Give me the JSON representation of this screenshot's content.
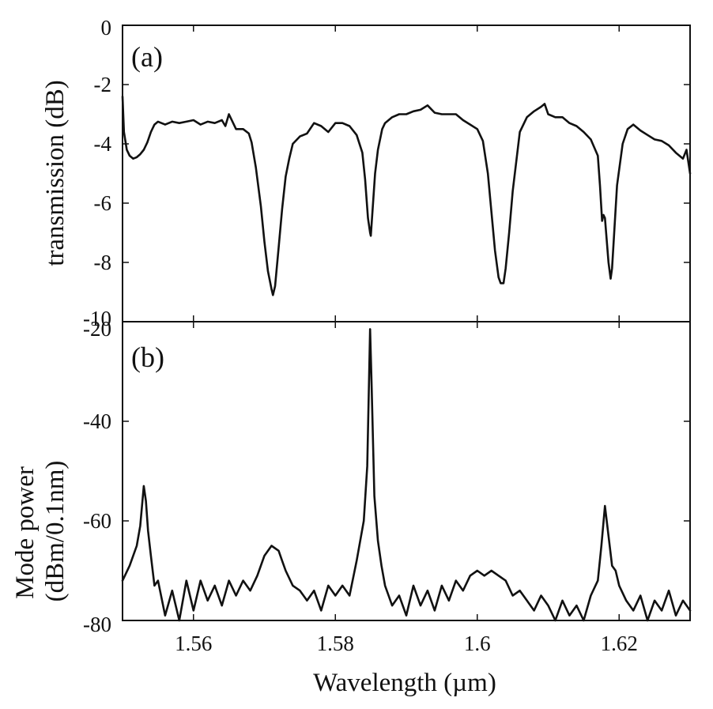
{
  "chart_data": [
    {
      "panel": "(a)",
      "type": "line",
      "ylabel": "transmission (dB)",
      "xlim": [
        1.55,
        1.63
      ],
      "ylim": [
        -10,
        0
      ],
      "yticks": [
        "0",
        "-2",
        "-4",
        "-6",
        "-8",
        "-10"
      ],
      "series": [
        {
          "x": [
            1.55,
            1.5502,
            1.5506,
            1.551,
            1.5515,
            1.552,
            1.5525,
            1.553,
            1.5535,
            1.554,
            1.5545,
            1.555,
            1.556,
            1.557,
            1.558,
            1.559,
            1.56,
            1.561,
            1.562,
            1.563,
            1.564,
            1.5645,
            1.565,
            1.566,
            1.567,
            1.5678,
            1.5682,
            1.5688,
            1.5695,
            1.57,
            1.5705,
            1.571,
            1.5712,
            1.5715,
            1.572,
            1.5725,
            1.573,
            1.5735,
            1.574,
            1.575,
            1.576,
            1.577,
            1.578,
            1.579,
            1.58,
            1.581,
            1.582,
            1.583,
            1.5838,
            1.5842,
            1.5846,
            1.5849,
            1.585,
            1.5852,
            1.5856,
            1.586,
            1.5866,
            1.587,
            1.588,
            1.589,
            1.59,
            1.591,
            1.592,
            1.593,
            1.594,
            1.595,
            1.596,
            1.597,
            1.598,
            1.599,
            1.6,
            1.6008,
            1.6015,
            1.602,
            1.6025,
            1.603,
            1.6033,
            1.6037,
            1.604,
            1.6045,
            1.605,
            1.6056,
            1.606,
            1.607,
            1.608,
            1.609,
            1.6095,
            1.61,
            1.611,
            1.612,
            1.613,
            1.614,
            1.615,
            1.616,
            1.617,
            1.6173,
            1.6176,
            1.6178,
            1.618,
            1.6185,
            1.6188,
            1.619,
            1.6193,
            1.6197,
            1.6205,
            1.6212,
            1.622,
            1.623,
            1.624,
            1.625,
            1.626,
            1.627,
            1.628,
            1.629,
            1.6295,
            1.63
          ],
          "y": [
            -2.4,
            -3.6,
            -4.2,
            -4.4,
            -4.5,
            -4.45,
            -4.35,
            -4.2,
            -3.95,
            -3.6,
            -3.35,
            -3.25,
            -3.35,
            -3.25,
            -3.3,
            -3.25,
            -3.2,
            -3.35,
            -3.25,
            -3.3,
            -3.2,
            -3.4,
            -3.0,
            -3.5,
            -3.5,
            -3.65,
            -3.95,
            -4.8,
            -6.1,
            -7.3,
            -8.3,
            -8.9,
            -9.1,
            -8.8,
            -7.5,
            -6.2,
            -5.1,
            -4.5,
            -4.0,
            -3.75,
            -3.65,
            -3.3,
            -3.4,
            -3.6,
            -3.3,
            -3.3,
            -3.4,
            -3.7,
            -4.3,
            -5.2,
            -6.5,
            -7.0,
            -7.1,
            -6.4,
            -5.0,
            -4.2,
            -3.5,
            -3.3,
            -3.1,
            -3.0,
            -3.0,
            -2.9,
            -2.85,
            -2.7,
            -2.95,
            -3.0,
            -3.0,
            -3.0,
            -3.2,
            -3.35,
            -3.5,
            -3.9,
            -5.0,
            -6.3,
            -7.6,
            -8.5,
            -8.7,
            -8.7,
            -8.2,
            -7.0,
            -5.6,
            -4.4,
            -3.6,
            -3.1,
            -2.9,
            -2.75,
            -2.65,
            -3.0,
            -3.1,
            -3.1,
            -3.3,
            -3.4,
            -3.6,
            -3.85,
            -4.4,
            -5.4,
            -6.6,
            -6.4,
            -6.5,
            -8.0,
            -8.55,
            -8.2,
            -7.0,
            -5.4,
            -4.0,
            -3.5,
            -3.35,
            -3.55,
            -3.7,
            -3.85,
            -3.9,
            -4.05,
            -4.3,
            -4.5,
            -4.2,
            -5.0
          ]
        }
      ]
    },
    {
      "panel": "(b)",
      "type": "line",
      "xlabel": "Wavelength (µm)",
      "ylabel": "Mode power (dBm/0.1nm)",
      "ylabel_lines": [
        "Mode power",
        "(dBm/0.1nm)"
      ],
      "xlim": [
        1.55,
        1.63
      ],
      "ylim": [
        -80,
        -20
      ],
      "xticks": [
        "1.56",
        "1.58",
        "1.6",
        "1.62"
      ],
      "yticks": [
        "-20",
        "-40",
        "-60",
        "-80"
      ],
      "series": [
        {
          "x": [
            1.55,
            1.551,
            1.552,
            1.5525,
            1.553,
            1.5533,
            1.5536,
            1.554,
            1.5545,
            1.555,
            1.556,
            1.557,
            1.558,
            1.559,
            1.56,
            1.561,
            1.562,
            1.563,
            1.564,
            1.565,
            1.566,
            1.567,
            1.568,
            1.569,
            1.57,
            1.571,
            1.572,
            1.5725,
            1.573,
            1.574,
            1.575,
            1.576,
            1.577,
            1.578,
            1.579,
            1.58,
            1.581,
            1.582,
            1.583,
            1.5835,
            1.584,
            1.5845,
            1.5849,
            1.5851,
            1.5855,
            1.586,
            1.5865,
            1.587,
            1.5875,
            1.588,
            1.589,
            1.59,
            1.591,
            1.592,
            1.593,
            1.594,
            1.595,
            1.596,
            1.597,
            1.598,
            1.599,
            1.6,
            1.601,
            1.602,
            1.603,
            1.604,
            1.605,
            1.606,
            1.607,
            1.608,
            1.609,
            1.61,
            1.611,
            1.612,
            1.613,
            1.614,
            1.615,
            1.616,
            1.617,
            1.6175,
            1.618,
            1.6185,
            1.619,
            1.6195,
            1.62,
            1.621,
            1.622,
            1.623,
            1.624,
            1.625,
            1.626,
            1.627,
            1.628,
            1.629,
            1.63
          ],
          "y": [
            -72,
            -69,
            -65,
            -61,
            -53,
            -56,
            -62,
            -67,
            -73,
            -72,
            -79,
            -74,
            -80,
            -72,
            -78,
            -72,
            -76,
            -73,
            -77,
            -72,
            -75,
            -72,
            -74,
            -71,
            -67,
            -65,
            -66,
            -68,
            -70,
            -73,
            -74,
            -76,
            -74,
            -78,
            -73,
            -75,
            -73,
            -75,
            -68,
            -64,
            -60,
            -49,
            -21.5,
            -32,
            -55,
            -64,
            -69,
            -73,
            -75,
            -77,
            -75,
            -79,
            -73,
            -77,
            -74,
            -78,
            -73,
            -76,
            -72,
            -74,
            -71,
            -70,
            -71,
            -70,
            -71,
            -72,
            -75,
            -74,
            -76,
            -78,
            -75,
            -77,
            -80,
            -76,
            -79,
            -77,
            -80,
            -75,
            -72,
            -65,
            -57,
            -63,
            -69,
            -70,
            -73,
            -76,
            -78,
            -75,
            -80,
            -76,
            -78,
            -74,
            -79,
            -76,
            -78
          ]
        }
      ]
    }
  ]
}
